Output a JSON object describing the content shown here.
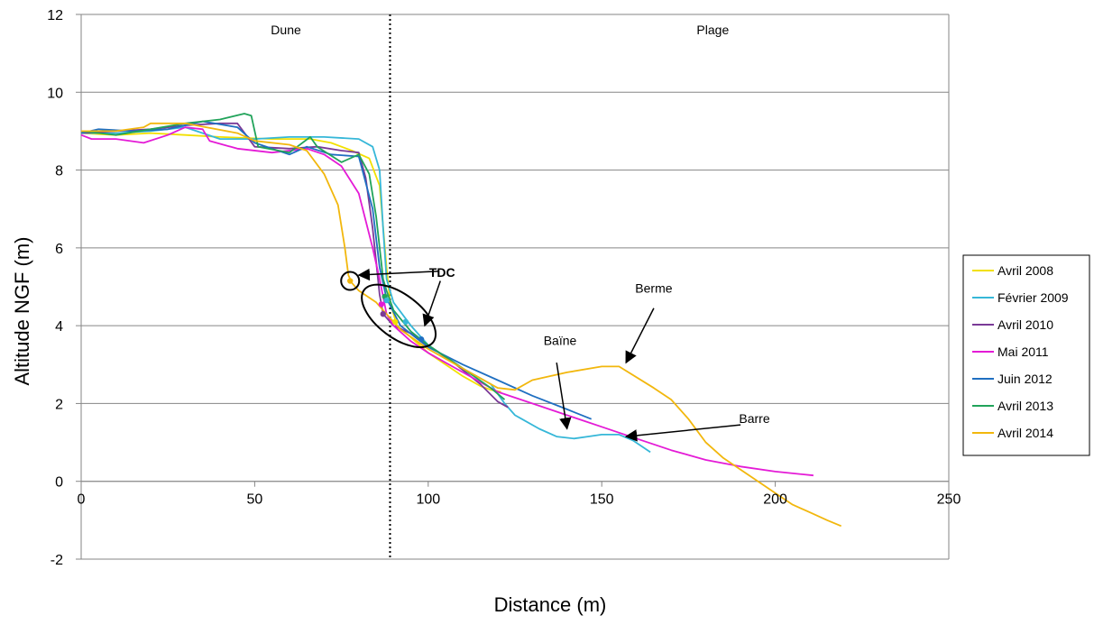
{
  "chart_data": {
    "type": "line",
    "xlabel": "Distance (m)",
    "ylabel": "Altitude NGF (m)",
    "xlim": [
      0,
      250
    ],
    "ylim": [
      -2,
      12
    ],
    "xticks": [
      0,
      50,
      100,
      150,
      200,
      250
    ],
    "yticks": [
      -2,
      0,
      2,
      4,
      6,
      8,
      10,
      12
    ],
    "grid": "horizontal",
    "legend_position": "right",
    "zones": [
      {
        "label": "Dune",
        "x": 59
      },
      {
        "label": "Plage",
        "x": 182
      }
    ],
    "divider_x": 89,
    "series": [
      {
        "name": "Avril 2008",
        "color": "#f2e000",
        "points": [
          [
            0,
            8.95
          ],
          [
            10,
            8.9
          ],
          [
            20,
            8.95
          ],
          [
            30,
            8.9
          ],
          [
            40,
            8.85
          ],
          [
            55,
            8.8
          ],
          [
            66,
            8.8
          ],
          [
            72,
            8.7
          ],
          [
            78,
            8.5
          ],
          [
            83,
            8.3
          ],
          [
            86,
            7.6
          ],
          [
            88,
            5.5
          ],
          [
            89,
            4.6
          ],
          [
            91,
            4.0
          ],
          [
            95,
            3.7
          ],
          [
            100,
            3.3
          ],
          [
            105,
            3.0
          ],
          [
            110,
            2.7
          ],
          [
            115,
            2.45
          ],
          [
            118,
            2.35
          ],
          [
            121,
            2.3
          ]
        ]
      },
      {
        "name": "Février 2009",
        "color": "#36b7d8",
        "points": [
          [
            0,
            8.95
          ],
          [
            10,
            8.95
          ],
          [
            20,
            9.0
          ],
          [
            30,
            9.1
          ],
          [
            40,
            8.8
          ],
          [
            50,
            8.8
          ],
          [
            60,
            8.85
          ],
          [
            70,
            8.85
          ],
          [
            80,
            8.8
          ],
          [
            84,
            8.6
          ],
          [
            86,
            8.0
          ],
          [
            87,
            6.5
          ],
          [
            88,
            5.2
          ],
          [
            90,
            4.6
          ],
          [
            95,
            4.0
          ],
          [
            100,
            3.5
          ],
          [
            110,
            2.9
          ],
          [
            118,
            2.5
          ],
          [
            122,
            2.0
          ],
          [
            125,
            1.7
          ],
          [
            127,
            1.6
          ],
          [
            132,
            1.35
          ],
          [
            137,
            1.15
          ],
          [
            142,
            1.1
          ],
          [
            146,
            1.15
          ],
          [
            150,
            1.2
          ],
          [
            155,
            1.2
          ],
          [
            159,
            1.05
          ],
          [
            164,
            0.75
          ]
        ]
      },
      {
        "name": "Avril 2010",
        "color": "#7a3a97",
        "points": [
          [
            0,
            8.95
          ],
          [
            10,
            9.0
          ],
          [
            20,
            9.05
          ],
          [
            30,
            9.15
          ],
          [
            40,
            9.2
          ],
          [
            45,
            9.2
          ],
          [
            50,
            8.6
          ],
          [
            60,
            8.55
          ],
          [
            68,
            8.6
          ],
          [
            75,
            8.5
          ],
          [
            80,
            8.45
          ],
          [
            82,
            7.8
          ],
          [
            84,
            6.5
          ],
          [
            86,
            4.8
          ],
          [
            87,
            4.3
          ],
          [
            90,
            4.0
          ],
          [
            95,
            3.8
          ],
          [
            100,
            3.5
          ],
          [
            108,
            3.0
          ],
          [
            115,
            2.5
          ],
          [
            120,
            2.05
          ],
          [
            123,
            1.9
          ]
        ]
      },
      {
        "name": "Mai 2011",
        "color": "#e41bd6",
        "points": [
          [
            0,
            8.9
          ],
          [
            3,
            8.8
          ],
          [
            10,
            8.8
          ],
          [
            18,
            8.7
          ],
          [
            25,
            8.9
          ],
          [
            30,
            9.1
          ],
          [
            35,
            9.05
          ],
          [
            37,
            8.75
          ],
          [
            45,
            8.55
          ],
          [
            55,
            8.45
          ],
          [
            65,
            8.55
          ],
          [
            70,
            8.4
          ],
          [
            75,
            8.1
          ],
          [
            80,
            7.4
          ],
          [
            84,
            6.0
          ],
          [
            86,
            5.2
          ],
          [
            88,
            4.3
          ],
          [
            90,
            4.0
          ],
          [
            95,
            3.6
          ],
          [
            100,
            3.3
          ],
          [
            110,
            2.8
          ],
          [
            120,
            2.3
          ],
          [
            130,
            2.0
          ],
          [
            140,
            1.7
          ],
          [
            150,
            1.4
          ],
          [
            160,
            1.1
          ],
          [
            170,
            0.8
          ],
          [
            180,
            0.55
          ],
          [
            190,
            0.38
          ],
          [
            200,
            0.25
          ],
          [
            211,
            0.15
          ]
        ]
      },
      {
        "name": "Juin 2012",
        "color": "#1f6fc1",
        "points": [
          [
            0,
            8.95
          ],
          [
            5,
            9.05
          ],
          [
            15,
            9.0
          ],
          [
            25,
            9.05
          ],
          [
            35,
            9.25
          ],
          [
            45,
            9.1
          ],
          [
            50,
            8.7
          ],
          [
            60,
            8.4
          ],
          [
            65,
            8.6
          ],
          [
            72,
            8.4
          ],
          [
            80,
            8.35
          ],
          [
            84,
            7.0
          ],
          [
            86,
            5.5
          ],
          [
            88,
            4.7
          ],
          [
            92,
            4.0
          ],
          [
            97,
            3.65
          ],
          [
            100,
            3.45
          ],
          [
            110,
            3.0
          ],
          [
            120,
            2.6
          ],
          [
            130,
            2.2
          ],
          [
            140,
            1.85
          ],
          [
            147,
            1.6
          ]
        ]
      },
      {
        "name": "Avril 2013",
        "color": "#21a35a",
        "points": [
          [
            0,
            9.0
          ],
          [
            10,
            8.9
          ],
          [
            20,
            9.05
          ],
          [
            30,
            9.2
          ],
          [
            40,
            9.3
          ],
          [
            47,
            9.45
          ],
          [
            49,
            9.4
          ],
          [
            51,
            8.6
          ],
          [
            60,
            8.45
          ],
          [
            66,
            8.85
          ],
          [
            68,
            8.6
          ],
          [
            75,
            8.2
          ],
          [
            80,
            8.4
          ],
          [
            83,
            7.9
          ],
          [
            85,
            6.8
          ],
          [
            87,
            5.2
          ],
          [
            88,
            4.9
          ],
          [
            90,
            4.4
          ],
          [
            95,
            3.85
          ],
          [
            100,
            3.5
          ],
          [
            110,
            2.9
          ],
          [
            118,
            2.4
          ],
          [
            122,
            2.1
          ]
        ]
      },
      {
        "name": "Avril 2014",
        "color": "#f2b70d",
        "points": [
          [
            0,
            9.0
          ],
          [
            10,
            9.0
          ],
          [
            18,
            9.1
          ],
          [
            20,
            9.2
          ],
          [
            30,
            9.2
          ],
          [
            45,
            8.95
          ],
          [
            50,
            8.75
          ],
          [
            60,
            8.65
          ],
          [
            65,
            8.5
          ],
          [
            70,
            7.9
          ],
          [
            74,
            7.1
          ],
          [
            76,
            6.0
          ],
          [
            77,
            5.3
          ],
          [
            78,
            5.1
          ],
          [
            80,
            4.9
          ],
          [
            85,
            4.6
          ],
          [
            88,
            4.3
          ],
          [
            92,
            3.9
          ],
          [
            100,
            3.4
          ],
          [
            110,
            2.9
          ],
          [
            120,
            2.4
          ],
          [
            125,
            2.35
          ],
          [
            130,
            2.6
          ],
          [
            140,
            2.8
          ],
          [
            150,
            2.95
          ],
          [
            155,
            2.95
          ],
          [
            165,
            2.4
          ],
          [
            170,
            2.1
          ],
          [
            175,
            1.6
          ],
          [
            180,
            1.0
          ],
          [
            185,
            0.6
          ],
          [
            190,
            0.3
          ],
          [
            195,
            0.0
          ],
          [
            200,
            -0.3
          ],
          [
            205,
            -0.6
          ],
          [
            210,
            -0.8
          ],
          [
            215,
            -1.0
          ],
          [
            219,
            -1.15
          ]
        ]
      }
    ],
    "markers": [
      {
        "x": 77.5,
        "y": 5.15,
        "color": "#f2b70d"
      },
      {
        "x": 87.5,
        "y": 4.75,
        "color": "#21a35a"
      },
      {
        "x": 88,
        "y": 4.65,
        "color": "#36b7d8"
      },
      {
        "x": 87,
        "y": 4.3,
        "color": "#7a3a97"
      },
      {
        "x": 86.5,
        "y": 4.55,
        "color": "#e41bd6"
      },
      {
        "x": 90.5,
        "y": 4.1,
        "color": "#f2e000"
      },
      {
        "x": 93.5,
        "y": 4.1,
        "color": "#36b7d8"
      },
      {
        "x": 98,
        "y": 3.65,
        "color": "#1f6fc1"
      }
    ],
    "annotations": [
      {
        "label": "TDC",
        "bold": true,
        "x": 104,
        "y": 5.25
      },
      {
        "label": "Berme",
        "x": 165,
        "y": 4.85
      },
      {
        "label": "Baïne",
        "x": 138,
        "y": 3.5
      },
      {
        "label": "Barre",
        "x": 194,
        "y": 1.5
      }
    ]
  }
}
